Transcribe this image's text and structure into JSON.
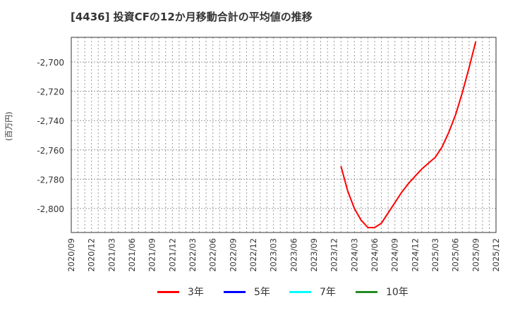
{
  "title": "[4436]  投資CFの12か月移動合計の平均値の推移",
  "y_axis_label": "(百万円)",
  "legend": [
    {
      "label": "3年",
      "color": "#ff0000"
    },
    {
      "label": "5年",
      "color": "#0000ff"
    },
    {
      "label": "7年",
      "color": "#00ffff"
    },
    {
      "label": "10年",
      "color": "#228b22"
    }
  ],
  "chart_data": {
    "type": "line",
    "title": "[4436]  投資CFの12か月移動合計の平均値の推移",
    "xlabel": "",
    "ylabel": "(百万円)",
    "ylim": [
      -2817,
      -2683
    ],
    "y_ticks": [
      -2700,
      -2720,
      -2740,
      -2760,
      -2780,
      -2800
    ],
    "y_tick_labels": [
      "-2,700",
      "-2,720",
      "-2,740",
      "-2,760",
      "-2,780",
      "-2,800"
    ],
    "x_tick_labels": [
      "2020/09",
      "2020/12",
      "2021/03",
      "2021/06",
      "2021/09",
      "2021/12",
      "2022/03",
      "2022/06",
      "2022/09",
      "2022/12",
      "2023/03",
      "2023/06",
      "2023/09",
      "2023/12",
      "2024/03",
      "2024/06",
      "2024/09",
      "2024/12",
      "2025/03",
      "2025/06",
      "2025/09",
      "2025/12"
    ],
    "grid": true,
    "legend_position": "bottom",
    "series": [
      {
        "name": "3年",
        "color": "#ff0000",
        "x": [
          "2024/01",
          "2024/02",
          "2024/03",
          "2024/04",
          "2024/05",
          "2024/06",
          "2024/07",
          "2024/08",
          "2024/09",
          "2024/10",
          "2024/11",
          "2024/12",
          "2025/01",
          "2025/02",
          "2025/03",
          "2025/04",
          "2025/05",
          "2025/06",
          "2025/07",
          "2025/08",
          "2025/09"
        ],
        "values": [
          -2771,
          -2788,
          -2800,
          -2808,
          -2813,
          -2813,
          -2810,
          -2803,
          -2796,
          -2789,
          -2783,
          -2778,
          -2773,
          -2769,
          -2765,
          -2758,
          -2748,
          -2736,
          -2721,
          -2704,
          -2686
        ]
      },
      {
        "name": "5年",
        "color": "#0000ff",
        "x": [],
        "values": []
      },
      {
        "name": "7年",
        "color": "#00ffff",
        "x": [],
        "values": []
      },
      {
        "name": "10年",
        "color": "#228b22",
        "x": [],
        "values": []
      }
    ]
  }
}
